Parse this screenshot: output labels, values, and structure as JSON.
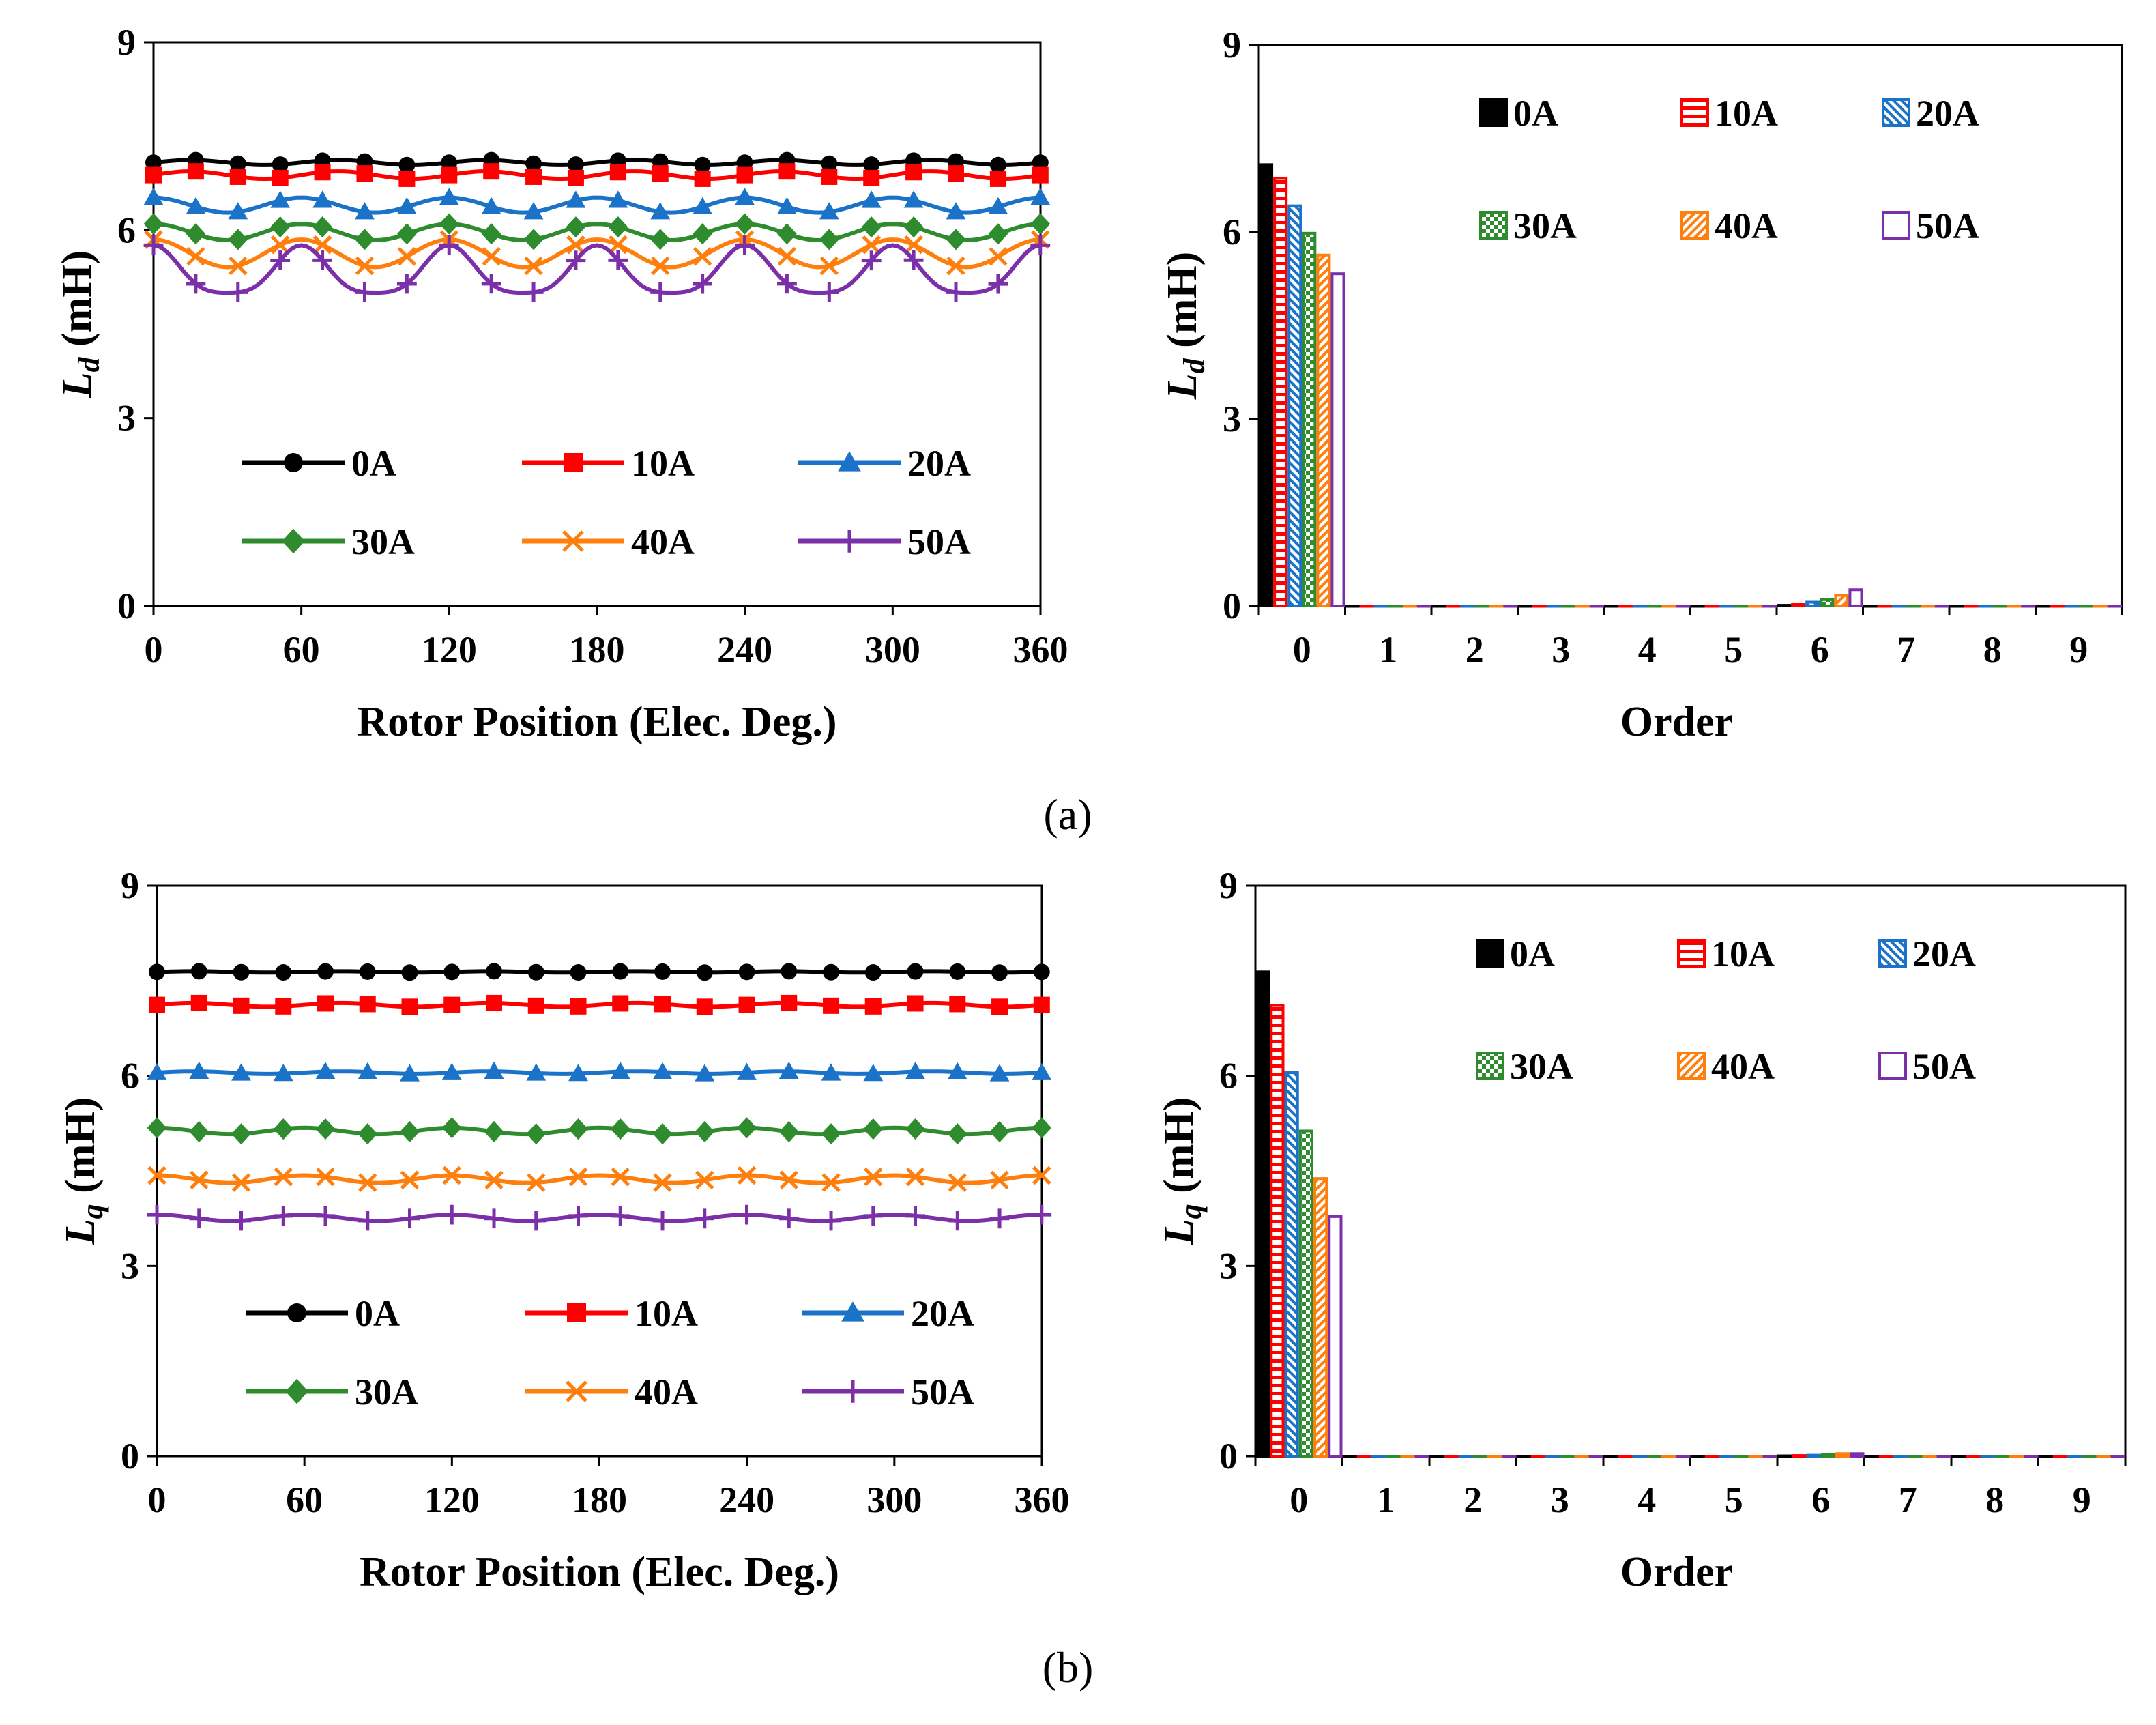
{
  "series_meta": [
    {
      "name": "0A",
      "color": "#000000",
      "marker": "circle",
      "pattern": "solid"
    },
    {
      "name": "10A",
      "color": "#ff0000",
      "marker": "square",
      "pattern": "hlines"
    },
    {
      "name": "20A",
      "color": "#1a73c8",
      "marker": "triangle",
      "pattern": "diag"
    },
    {
      "name": "30A",
      "color": "#2e8b2e",
      "marker": "diamond",
      "pattern": "checker"
    },
    {
      "name": "40A",
      "color": "#ff7f0e",
      "marker": "x",
      "pattern": "dashdiag"
    },
    {
      "name": "50A",
      "color": "#7b2fa8",
      "marker": "plus",
      "pattern": "empty"
    }
  ],
  "captions": {
    "a": "(a)",
    "b": "(b)"
  },
  "chart_data": [
    {
      "id": "a_left",
      "type": "line",
      "xlabel": "Rotor Position (Elec. Deg.)",
      "ylabel_main": "L",
      "ylabel_sub": "d",
      "ylabel_unit": " (mH)",
      "xlim": [
        0,
        360
      ],
      "ylim": [
        0,
        9
      ],
      "xticks": [
        0,
        60,
        120,
        180,
        240,
        300,
        360
      ],
      "yticks": [
        0,
        3,
        6,
        9
      ],
      "series": [
        {
          "name": "0A",
          "base": 7.08,
          "amp": 0.04,
          "pattern": "flat"
        },
        {
          "name": "10A",
          "base": 6.88,
          "amp": 0.06,
          "pattern": "flat"
        },
        {
          "name": "20A",
          "base": 6.4,
          "amp": 0.12,
          "pattern": "sine6"
        },
        {
          "name": "30A",
          "base": 5.97,
          "amp": 0.13,
          "pattern": "sine6"
        },
        {
          "name": "40A",
          "base": 5.63,
          "amp": 0.22,
          "pattern": "sine6"
        },
        {
          "name": "50A",
          "base": 5.3,
          "amp": 0.38,
          "pattern": "dip6"
        }
      ]
    },
    {
      "id": "a_right",
      "type": "bar",
      "xlabel": "Order",
      "ylabel_main": "L",
      "ylabel_sub": "d",
      "ylabel_unit": " (mH)",
      "ylim": [
        0,
        9
      ],
      "categories": [
        "0",
        "1",
        "2",
        "3",
        "4",
        "5",
        "6",
        "7",
        "8",
        "9"
      ],
      "yticks": [
        0,
        3,
        6,
        9
      ],
      "series": [
        {
          "name": "0A",
          "values": [
            7.08,
            0,
            0,
            0,
            0,
            0,
            0.01,
            0,
            0,
            0
          ]
        },
        {
          "name": "10A",
          "values": [
            6.86,
            0,
            0,
            0,
            0,
            0,
            0.03,
            0,
            0,
            0
          ]
        },
        {
          "name": "20A",
          "values": [
            6.42,
            0,
            0,
            0,
            0,
            0,
            0.06,
            0,
            0,
            0
          ]
        },
        {
          "name": "30A",
          "values": [
            5.98,
            0,
            0,
            0,
            0,
            0,
            0.1,
            0,
            0,
            0
          ]
        },
        {
          "name": "40A",
          "values": [
            5.63,
            0,
            0,
            0,
            0,
            0,
            0.17,
            0,
            0,
            0
          ]
        },
        {
          "name": "50A",
          "values": [
            5.33,
            0,
            0,
            0,
            0,
            0,
            0.26,
            0,
            0,
            0
          ]
        }
      ]
    },
    {
      "id": "b_left",
      "type": "line",
      "xlabel": "Rotor Position (Elec. Deg.)",
      "ylabel_main": "L",
      "ylabel_sub": "q",
      "ylabel_unit": " (mH)",
      "xlim": [
        0,
        360
      ],
      "ylim": [
        0,
        9
      ],
      "xticks": [
        0,
        60,
        120,
        180,
        240,
        300,
        360
      ],
      "yticks": [
        0,
        3,
        6,
        9
      ],
      "series": [
        {
          "name": "0A",
          "base": 7.64,
          "amp": 0.01,
          "pattern": "flat"
        },
        {
          "name": "10A",
          "base": 7.12,
          "amp": 0.03,
          "pattern": "flat"
        },
        {
          "name": "20A",
          "base": 6.05,
          "amp": 0.02,
          "pattern": "flat"
        },
        {
          "name": "30A",
          "base": 5.13,
          "amp": 0.05,
          "pattern": "sine6"
        },
        {
          "name": "40A",
          "base": 4.37,
          "amp": 0.06,
          "pattern": "sine6"
        },
        {
          "name": "50A",
          "base": 3.76,
          "amp": 0.05,
          "pattern": "sine6"
        }
      ]
    },
    {
      "id": "b_right",
      "type": "bar",
      "xlabel": "Order",
      "ylabel_main": "L",
      "ylabel_sub": "q",
      "ylabel_unit": " (mH)",
      "ylim": [
        0,
        9
      ],
      "categories": [
        "0",
        "1",
        "2",
        "3",
        "4",
        "5",
        "6",
        "7",
        "8",
        "9"
      ],
      "yticks": [
        0,
        3,
        6,
        9
      ],
      "series": [
        {
          "name": "0A",
          "values": [
            7.64,
            0,
            0,
            0,
            0,
            0,
            0.005,
            0,
            0,
            0
          ]
        },
        {
          "name": "10A",
          "values": [
            7.11,
            0,
            0,
            0,
            0,
            0,
            0.01,
            0,
            0,
            0
          ]
        },
        {
          "name": "20A",
          "values": [
            6.05,
            0,
            0,
            0,
            0,
            0,
            0.015,
            0,
            0,
            0
          ]
        },
        {
          "name": "30A",
          "values": [
            5.13,
            0,
            0,
            0,
            0,
            0,
            0.03,
            0,
            0,
            0
          ]
        },
        {
          "name": "40A",
          "values": [
            4.38,
            0,
            0,
            0,
            0,
            0,
            0.04,
            0,
            0,
            0
          ]
        },
        {
          "name": "50A",
          "values": [
            3.78,
            0,
            0,
            0,
            0,
            0,
            0.04,
            0,
            0,
            0
          ]
        }
      ]
    }
  ]
}
